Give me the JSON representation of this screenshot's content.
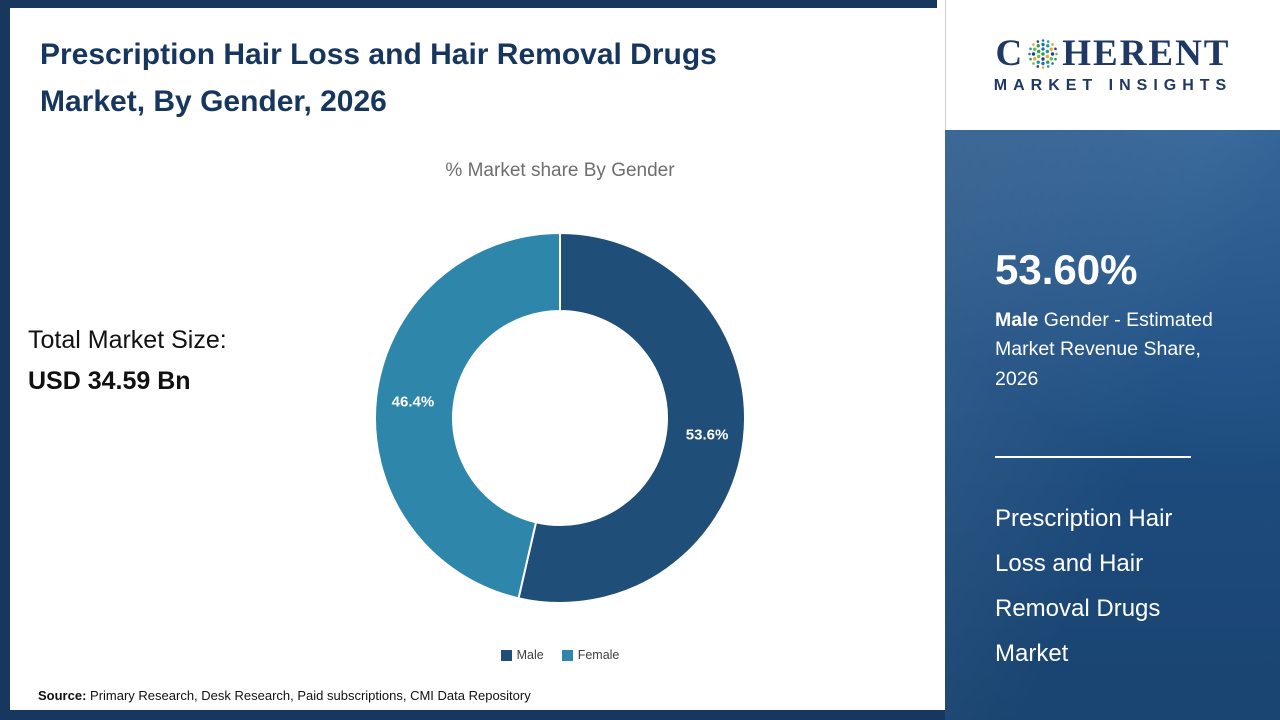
{
  "header": {
    "title": "Prescription Hair Loss and Hair Removal Drugs Market, By Gender, 2026"
  },
  "logo": {
    "part1": "C",
    "part2": "HERENT",
    "line2": "MARKET INSIGHTS"
  },
  "chart_data": {
    "type": "pie",
    "donut": true,
    "title": "% Market share By Gender",
    "categories": [
      "Male",
      "Female"
    ],
    "values": [
      53.6,
      46.4
    ],
    "labels": [
      "53.6%",
      "46.4%"
    ],
    "colors": [
      "#1f4e79",
      "#2e86ab"
    ],
    "start_angle_deg": 0,
    "legend_position": "bottom"
  },
  "total_market": {
    "label": "Total Market Size:",
    "value": "USD 34.59 Bn"
  },
  "sidebar": {
    "stat_value": "53.60%",
    "caption_bold": "Male",
    "caption_rest": " Gender - Estimated Market Revenue Share, 2026",
    "market_name": "Prescription Hair Loss and Hair Removal Drugs Market"
  },
  "footer": {
    "source_label": "Source:",
    "source_text": " Primary Research, Desk Research, Paid subscriptions, CMI Data Repository"
  }
}
